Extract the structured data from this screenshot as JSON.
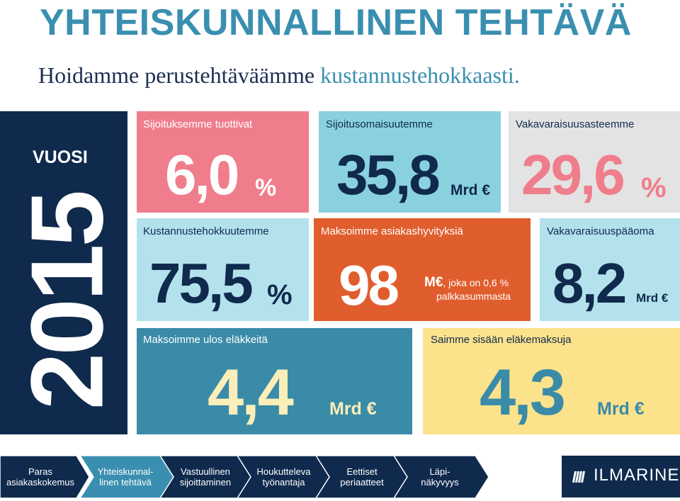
{
  "header": {
    "title": "YHTEISKUNNALLINEN TEHTÄVÄ",
    "subtitle_part1": "Hoidamme perustehtäväämme ",
    "subtitle_part2": "kustannustehokkaasti."
  },
  "year_panel": {
    "label": "VUOSI",
    "year": "2015"
  },
  "cards": {
    "returns": {
      "label": "Sijoituksemme tuottivat",
      "value": "6,0",
      "unit": "%"
    },
    "investments": {
      "label": "Sijoitusomaisuutemme",
      "value": "35,8",
      "unit": "Mrd €"
    },
    "solvency_ratio": {
      "label": "Vakavaraisuusasteemme",
      "value": "29,6",
      "unit": "%"
    },
    "cost_efficiency": {
      "label": "Kustannustehokkuutemme",
      "value": "75,5",
      "unit": "%"
    },
    "client_bonuses": {
      "label": "Maksoimme asiakashyvityksiä",
      "value": "98",
      "unit": "M€",
      "note": ", joka on 0,6 %",
      "note2": "palkkasummasta"
    },
    "solvency_capital": {
      "label": "Vakavaraisuuspääoma",
      "value": "8,2",
      "unit": "Mrd €"
    },
    "pensions_paid": {
      "label": "Maksoimme ulos eläkkeitä",
      "value": "4,4",
      "unit": "Mrd €"
    },
    "contributions": {
      "label": "Saimme sisään eläkemaksuja",
      "value": "4,3",
      "unit": "Mrd €"
    }
  },
  "nav": [
    {
      "line1": "Paras",
      "line2": "asiakaskokemus",
      "color": "#0f2a4d"
    },
    {
      "line1": "Yhteiskunnal-",
      "line2": "linen tehtävä",
      "color": "#3a8fb0"
    },
    {
      "line1": "Vastuullinen",
      "line2": "sijoittaminen",
      "color": "#0f2a4d"
    },
    {
      "line1": "Houkutteleva",
      "line2": "työnantaja",
      "color": "#0f2a4d"
    },
    {
      "line1": "Eettiset",
      "line2": "periaatteet",
      "color": "#0f2a4d"
    },
    {
      "line1": "Läpi-",
      "line2": "näkyvyys",
      "color": "#0f2a4d"
    }
  ],
  "brand": {
    "name": "ILMARINEN",
    "icon": "ilmarinen-logo-icon"
  },
  "colors": {
    "navy": "#0f2a4d",
    "title_blue": "#3a8fb0",
    "pink": "#f07d8c",
    "light_blue": "#8ad1df",
    "grey": "#e3e3e3",
    "pale_blue": "#b3e1ec",
    "orange": "#e05d2e",
    "teal": "#3a8ba8",
    "yellow": "#fbe28b",
    "cream": "#fbeeb8"
  }
}
